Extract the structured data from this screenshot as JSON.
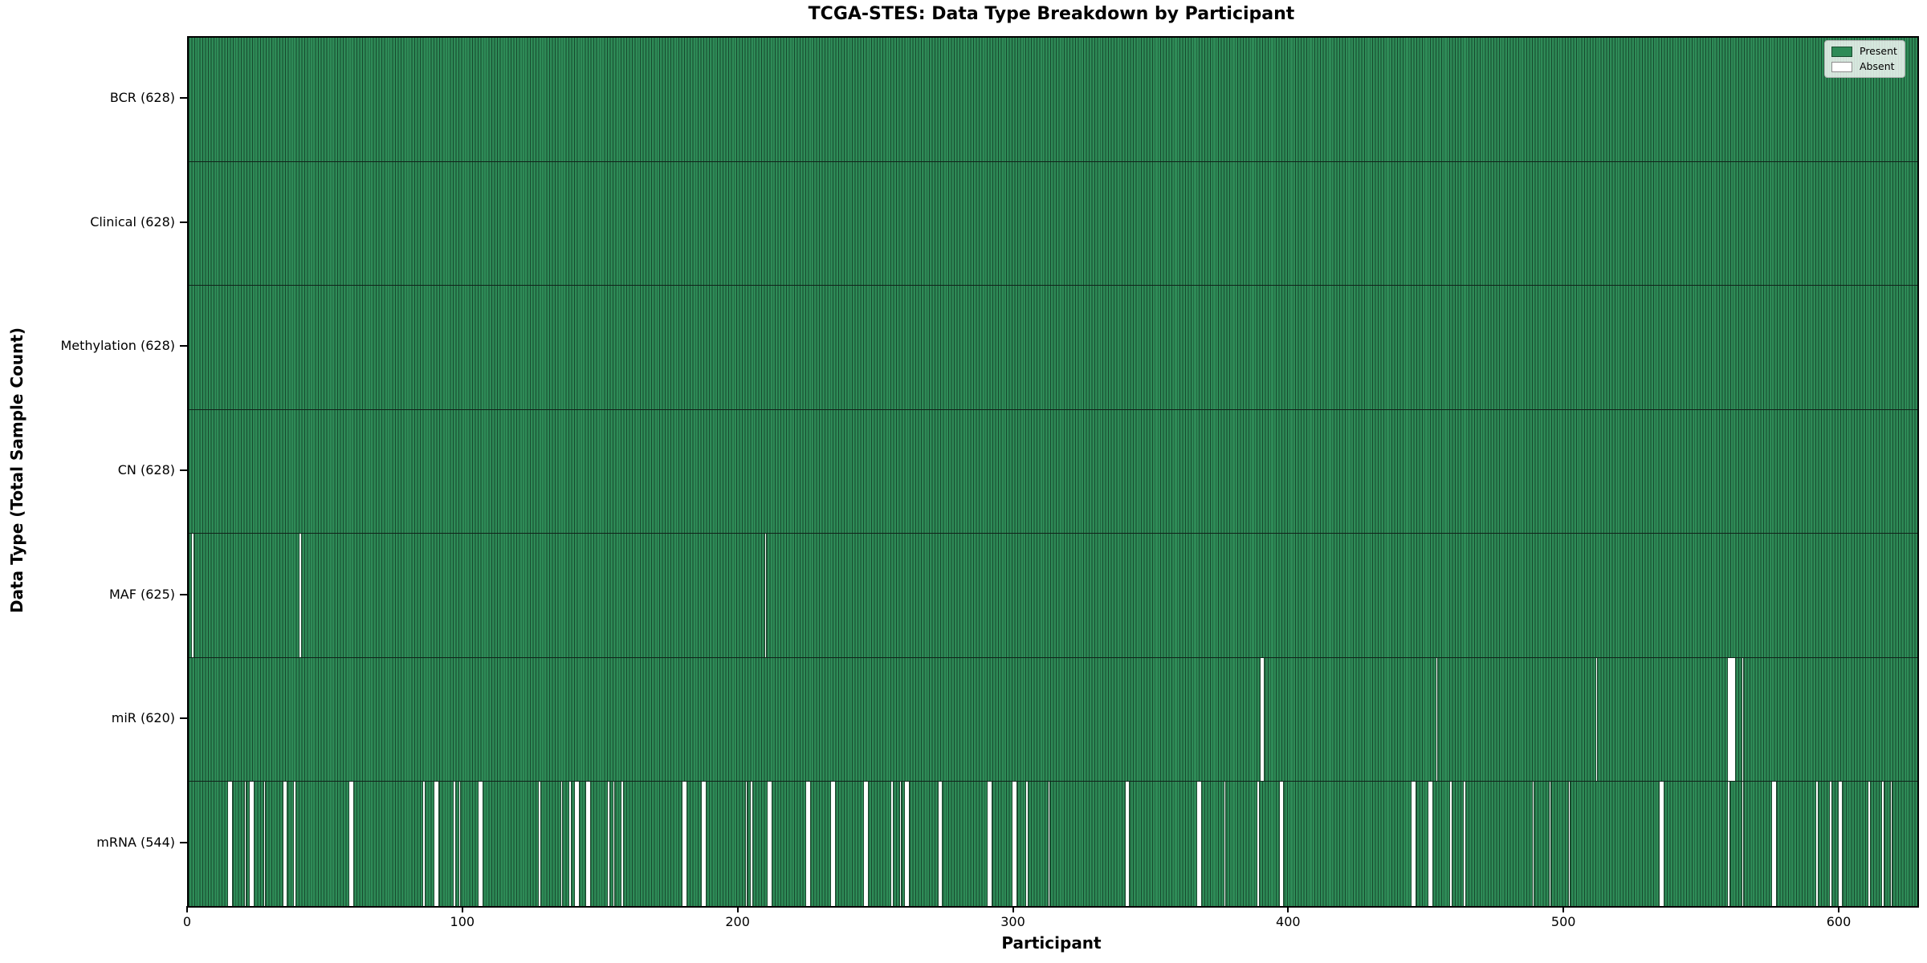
{
  "chart_data": {
    "type": "heatmap",
    "title": "TCGA-STES: Data Type Breakdown by Participant",
    "xlabel": "Participant",
    "ylabel": "Data Type (Total Sample Count)",
    "n_participants": 628,
    "x_ticks": [
      0,
      100,
      200,
      300,
      400,
      500,
      600
    ],
    "grid": false,
    "legend_position": "upper right",
    "legend": [
      {
        "label": "Present",
        "value": "present"
      },
      {
        "label": "Absent",
        "value": "absent"
      }
    ],
    "colors": {
      "present": "#2e8b57",
      "absent": "#ffffff",
      "bar_edge": "#17492e",
      "row_separator": "#10231a",
      "spine": "#000000"
    },
    "rows": [
      {
        "name": "BCR",
        "label": "BCR (628)",
        "present_count": 628,
        "absent_participants": []
      },
      {
        "name": "Clinical",
        "label": "Clinical (628)",
        "present_count": 628,
        "absent_participants": []
      },
      {
        "name": "Methylation",
        "label": "Methylation (628)",
        "present_count": 628,
        "absent_participants": []
      },
      {
        "name": "CN",
        "label": "CN (628)",
        "present_count": 628,
        "absent_participants": []
      },
      {
        "name": "MAF",
        "label": "MAF (625)",
        "present_count": 625,
        "absent_participants": [
          1,
          40,
          209
        ]
      },
      {
        "name": "miR",
        "label": "miR (620)",
        "present_count": 620,
        "absent_participants": [
          389,
          390,
          453,
          511,
          559,
          560,
          561,
          564
        ]
      },
      {
        "name": "mRNA",
        "label": "mRNA (544)",
        "present_count": 544,
        "absent_participants": [
          14,
          15,
          20,
          22,
          23,
          27,
          34,
          35,
          38,
          58,
          59,
          85,
          89,
          90,
          96,
          98,
          105,
          106,
          127,
          135,
          138,
          140,
          141,
          144,
          145,
          152,
          154,
          157,
          179,
          180,
          186,
          187,
          202,
          204,
          210,
          211,
          224,
          225,
          233,
          234,
          245,
          246,
          255,
          258,
          260,
          261,
          272,
          273,
          290,
          291,
          299,
          300,
          304,
          312,
          340,
          341,
          366,
          367,
          376,
          388,
          396,
          397,
          444,
          445,
          450,
          451,
          458,
          463,
          488,
          494,
          501,
          534,
          535,
          559,
          564,
          575,
          576,
          591,
          596,
          599,
          600,
          610,
          615,
          618
        ]
      }
    ]
  }
}
